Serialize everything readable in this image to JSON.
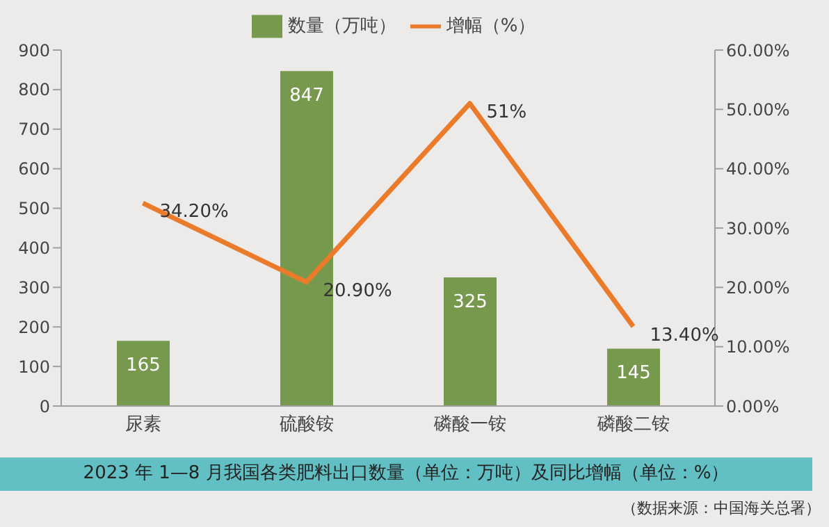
{
  "chart_data": {
    "type": "bar",
    "title": "2023 年 1—8 月我国各类肥料出口数量（单位：万吨）及同比增幅（单位：%）",
    "annotations": [
      "（数据来源：中国海关总署）"
    ],
    "categories": [
      "尿素",
      "硫酸铵",
      "磷酸一铵",
      "磷酸二铵"
    ],
    "series": [
      {
        "name": "数量（万吨）",
        "color": "#77994e",
        "values": [
          165,
          847,
          325,
          145
        ],
        "value_labels": [
          "165",
          "847",
          "325",
          "145"
        ]
      },
      {
        "name": "增幅（%）",
        "type": "line",
        "axis": "y2",
        "color": "#ea7b2a",
        "values": [
          34.2,
          20.9,
          51,
          13.4
        ],
        "value_labels": [
          "34.20%",
          "20.90%",
          "51%",
          "13.40%"
        ]
      }
    ],
    "ylim": [
      0,
      900
    ],
    "yticks": [
      0,
      100,
      200,
      300,
      400,
      500,
      600,
      700,
      800,
      900
    ],
    "y2lim": [
      0,
      60
    ],
    "y2ticks": [
      {
        "value": 0,
        "label": "0.00%"
      },
      {
        "value": 10,
        "label": "10.00%"
      },
      {
        "value": 20,
        "label": "20.00%"
      },
      {
        "value": 30,
        "label": "30.00%"
      },
      {
        "value": 40,
        "label": "40.00%"
      },
      {
        "value": 50,
        "label": "50.00%"
      },
      {
        "value": 60,
        "label": "60.00%"
      }
    ],
    "grid": false,
    "legend": "top",
    "marker": "none",
    "line_style": "solid"
  }
}
